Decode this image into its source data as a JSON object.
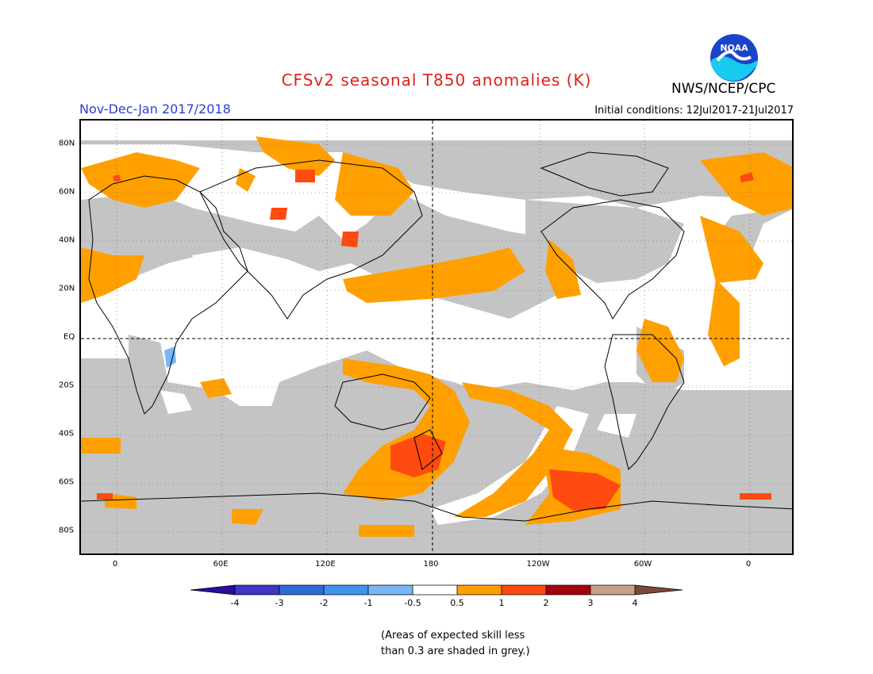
{
  "header": {
    "title": "CFSv2 seasonal T850 anomalies (K)",
    "period": "Nov-Dec-Jan 2017/2018",
    "agency": "NWS/NCEP/CPC",
    "initial_conditions": "Initial conditions: 12Jul2017-21Jul2017",
    "logo_text": "NOAA"
  },
  "map": {
    "lat_labels": [
      "80N",
      "60N",
      "40N",
      "20N",
      "EQ",
      "20S",
      "40S",
      "60S",
      "80S"
    ],
    "lon_labels": [
      "0",
      "60E",
      "120E",
      "180",
      "120W",
      "60W",
      "0"
    ]
  },
  "colorbar": {
    "labels": [
      "-4",
      "-3",
      "-2",
      "-1",
      "-0.5",
      "0.5",
      "1",
      "2",
      "3",
      "4"
    ],
    "colors": {
      "lt_m4": "#2a0c9e",
      "m4_m3": "#3e35c9",
      "m3_m2": "#2f6bd8",
      "m2_m1": "#3f94ee",
      "m1_m05": "#78b6f5",
      "m05_05": "#ffffff",
      "p05_1": "#ffa000",
      "p1_2": "#ff4a10",
      "p2_3": "#a3000b",
      "p3_4": "#c8a08a",
      "gt_4": "#7b4a3a"
    }
  },
  "footnote": {
    "line1": "(Areas of expected skill less",
    "line2": "than 0.3 are shaded in grey.)"
  },
  "colors": {
    "grey_low_skill": "#c4c4c4",
    "title": "#e0201a",
    "period": "#2b3fd6"
  }
}
